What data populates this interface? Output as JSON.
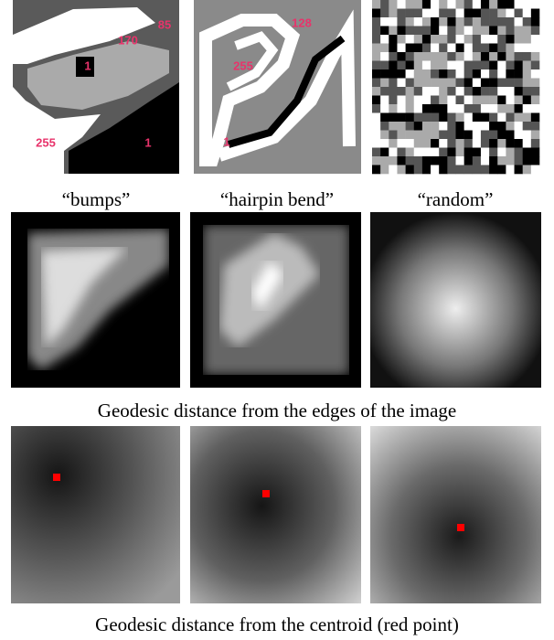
{
  "panels": [
    {
      "caption": "“bumps”",
      "labels": [
        85,
        170,
        1,
        255,
        1
      ]
    },
    {
      "caption": "“hairpin bend”",
      "labels": [
        128,
        255,
        1
      ]
    },
    {
      "caption": "“random”"
    }
  ],
  "row2_caption": "Geodesic distance from the edges of the image",
  "row3_caption": "Geodesic distance from the centroid (red point)"
}
